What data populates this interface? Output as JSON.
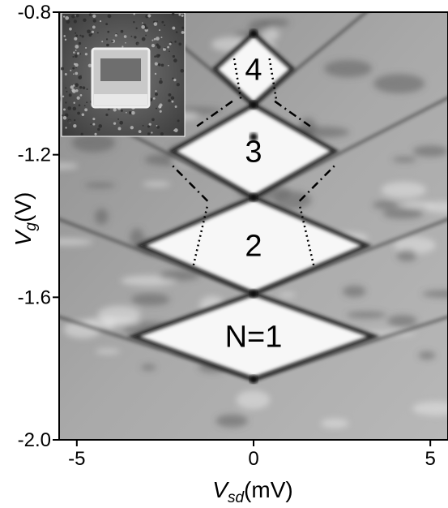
{
  "figure": {
    "inset_caption": "",
    "diamond_labels": [
      "4",
      "3",
      "2",
      "N=1"
    ]
  },
  "chart_data": {
    "type": "heatmap",
    "title": "",
    "xlabel": {
      "main": "V",
      "sub": "sd",
      "unit": "(mV)"
    },
    "ylabel": {
      "main": "V",
      "sub": "g",
      "unit": "(V)"
    },
    "xlim": [
      -5.5,
      5.5
    ],
    "ylim": [
      -2.0,
      -0.8
    ],
    "x_ticks": [
      {
        "value": -5,
        "label": "-5"
      },
      {
        "value": 0,
        "label": "0"
      },
      {
        "value": 5,
        "label": "5"
      }
    ],
    "y_ticks": [
      {
        "value": -0.8,
        "label": "-0.8"
      },
      {
        "value": -1.2,
        "label": "-1.2"
      },
      {
        "value": -1.6,
        "label": "-1.6"
      },
      {
        "value": -2.0,
        "label": "-2.0"
      }
    ],
    "degeneracy_points_vg": [
      -1.83,
      -1.59,
      -1.32,
      -1.15,
      -1.06,
      -0.86
    ],
    "diamonds": [
      {
        "label": "N=1",
        "vg_bottom": -1.83,
        "vg_top": -1.59,
        "half_width_mV": 3.4
      },
      {
        "label": "2",
        "vg_bottom": -1.59,
        "vg_top": -1.32,
        "half_width_mV": 3.2
      },
      {
        "label": "3",
        "vg_bottom": -1.32,
        "vg_top": -1.06,
        "half_width_mV": 2.3
      },
      {
        "label": "4",
        "vg_bottom": -1.06,
        "vg_top": -0.86,
        "half_width_mV": 1.1
      }
    ],
    "colormap": "grayscale (white = low conductance, black = high)",
    "grid": false,
    "legend": "none"
  }
}
